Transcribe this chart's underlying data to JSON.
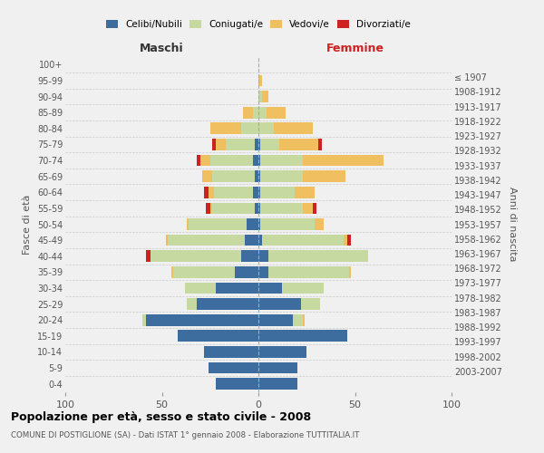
{
  "age_groups": [
    "0-4",
    "5-9",
    "10-14",
    "15-19",
    "20-24",
    "25-29",
    "30-34",
    "35-39",
    "40-44",
    "45-49",
    "50-54",
    "55-59",
    "60-64",
    "65-69",
    "70-74",
    "75-79",
    "80-84",
    "85-89",
    "90-94",
    "95-99",
    "100+"
  ],
  "birth_years": [
    "2003-2007",
    "1998-2002",
    "1993-1997",
    "1988-1992",
    "1983-1987",
    "1978-1982",
    "1973-1977",
    "1968-1972",
    "1963-1967",
    "1958-1962",
    "1953-1957",
    "1948-1952",
    "1943-1947",
    "1938-1942",
    "1933-1937",
    "1928-1932",
    "1923-1927",
    "1918-1922",
    "1913-1917",
    "1908-1912",
    "≤ 1907"
  ],
  "colors": {
    "celibe": "#3d6d9e",
    "coniugato": "#c5d9a0",
    "vedovo": "#f0c060",
    "divorziato": "#cc2222"
  },
  "maschi": {
    "celibe": [
      22,
      26,
      28,
      42,
      58,
      32,
      22,
      12,
      9,
      7,
      6,
      2,
      3,
      2,
      3,
      2,
      0,
      0,
      0,
      0,
      0
    ],
    "coniugato": [
      0,
      0,
      0,
      0,
      2,
      5,
      16,
      32,
      47,
      40,
      30,
      22,
      20,
      22,
      22,
      15,
      9,
      3,
      0,
      0,
      0
    ],
    "vedovo": [
      0,
      0,
      0,
      0,
      0,
      0,
      0,
      1,
      0,
      1,
      1,
      1,
      3,
      5,
      5,
      5,
      16,
      5,
      0,
      0,
      0
    ],
    "divorziato": [
      0,
      0,
      0,
      0,
      0,
      0,
      0,
      0,
      2,
      0,
      0,
      2,
      2,
      0,
      2,
      2,
      0,
      0,
      0,
      0,
      0
    ]
  },
  "femmine": {
    "celibe": [
      20,
      20,
      25,
      46,
      18,
      22,
      12,
      5,
      5,
      2,
      1,
      1,
      1,
      1,
      1,
      1,
      0,
      0,
      0,
      0,
      0
    ],
    "coniugata": [
      0,
      0,
      0,
      0,
      5,
      10,
      22,
      42,
      52,
      42,
      28,
      22,
      18,
      22,
      22,
      10,
      8,
      4,
      2,
      0,
      0
    ],
    "vedova": [
      0,
      0,
      0,
      0,
      1,
      0,
      0,
      1,
      0,
      2,
      5,
      5,
      10,
      22,
      42,
      20,
      20,
      10,
      3,
      2,
      0
    ],
    "divorziata": [
      0,
      0,
      0,
      0,
      0,
      0,
      0,
      0,
      0,
      2,
      0,
      2,
      0,
      0,
      0,
      2,
      0,
      0,
      0,
      0,
      0
    ]
  },
  "xlim": 100,
  "title": "Popolazione per età, sesso e stato civile - 2008",
  "subtitle": "COMUNE DI POSTIGLIONE (SA) - Dati ISTAT 1° gennaio 2008 - Elaborazione TUTTITALIA.IT",
  "ylabel_left": "Fasce di età",
  "ylabel_right": "Anni di nascita",
  "xlabel_left": "Maschi",
  "xlabel_right": "Femmine",
  "bg_color": "#f0f0f0",
  "plot_bg": "#f0f0f0"
}
